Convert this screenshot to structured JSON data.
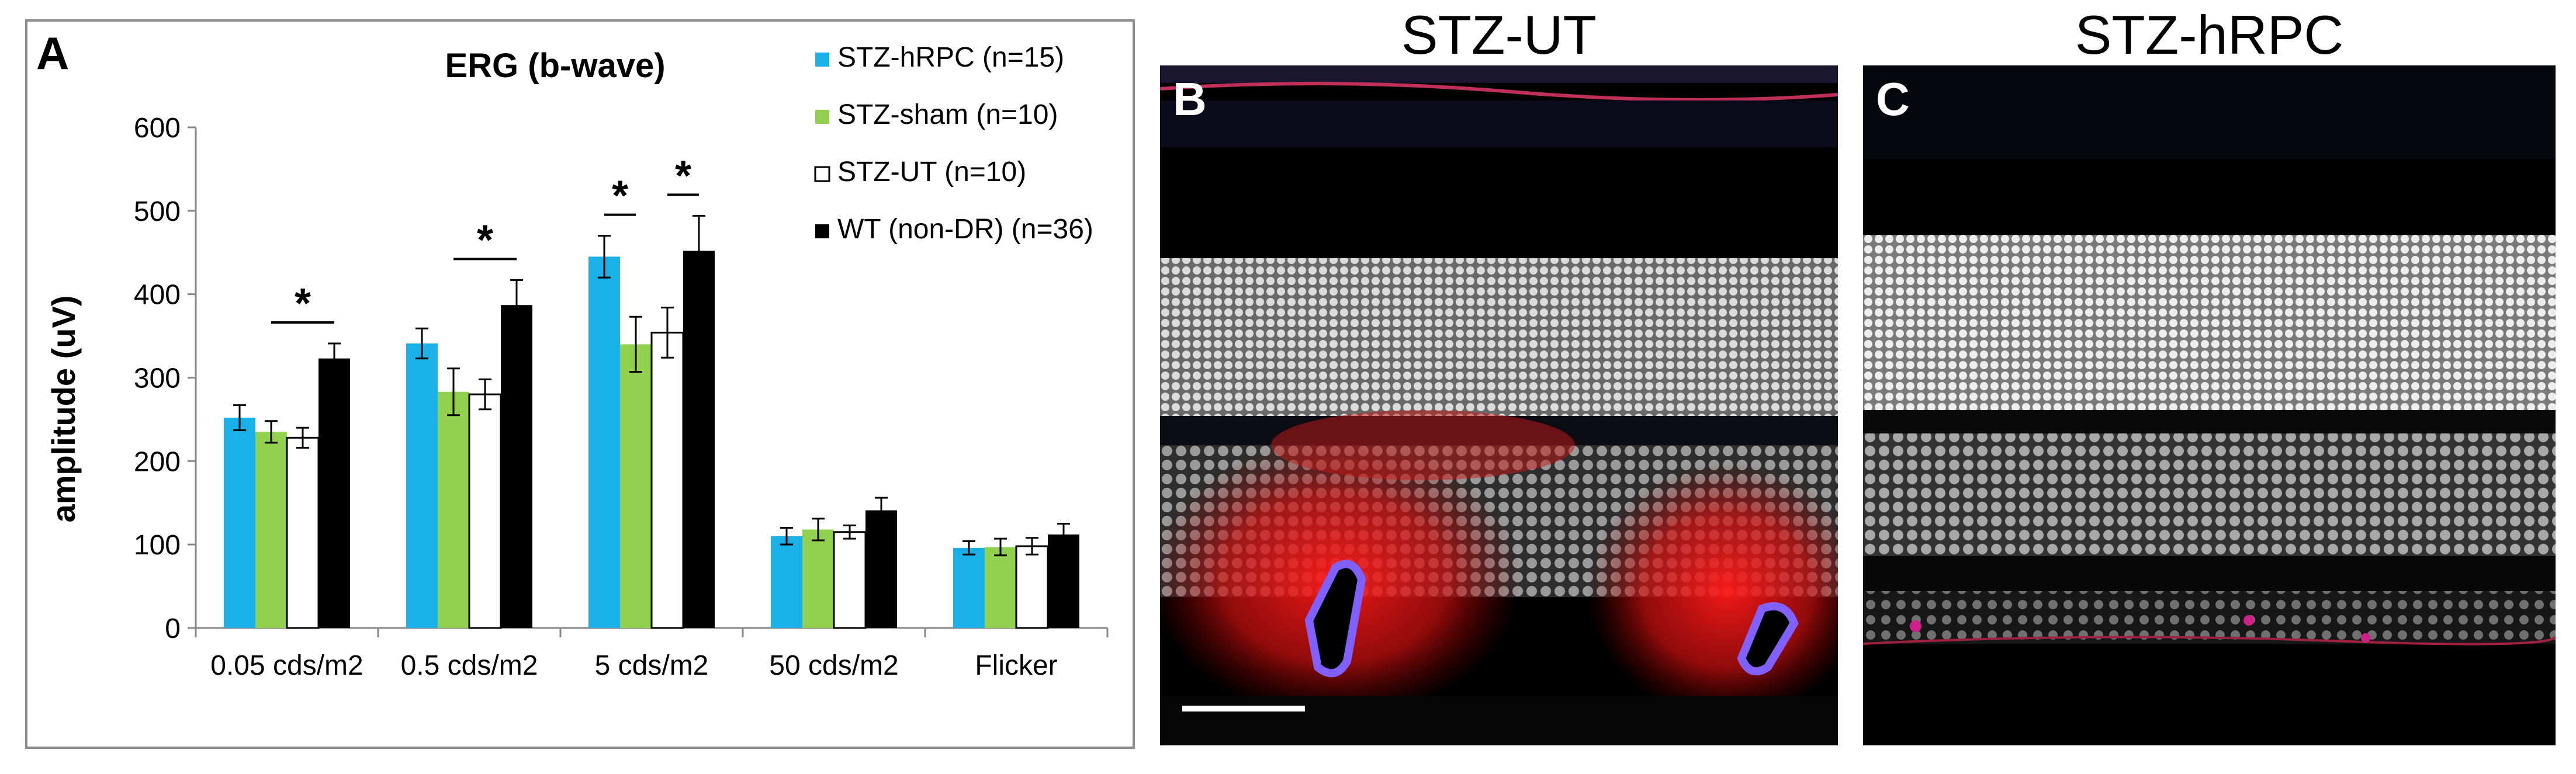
{
  "panels": {
    "a_label": "A",
    "b_label": "B",
    "c_label": "C",
    "b_title": "STZ-UT",
    "c_title": "STZ-hRPC"
  },
  "chart_data": {
    "type": "bar",
    "title": "ERG (b-wave)",
    "xlabel": "",
    "ylabel": "amplitude (uV)",
    "ylim": [
      0,
      600
    ],
    "yticks": [
      0,
      100,
      200,
      300,
      400,
      500,
      600
    ],
    "categories": [
      "0.05 cds/m2",
      "0.5 cds/m2",
      "5 cds/m2",
      "50 cds/m2",
      "Flicker"
    ],
    "legend_position": "top-right",
    "grid": false,
    "series": [
      {
        "name": "STZ-hRPC (n=15)",
        "color": "#1ab0e8",
        "values": [
          252,
          341,
          445,
          110,
          96
        ],
        "errors": [
          15,
          18,
          25,
          10,
          8
        ]
      },
      {
        "name": "STZ-sham (n=10)",
        "color": "#92d050",
        "values": [
          235,
          283,
          340,
          118,
          97
        ],
        "errors": [
          13,
          28,
          33,
          13,
          10
        ]
      },
      {
        "name": "STZ-UT (n=10)",
        "color": "#ffffff",
        "values": [
          228,
          280,
          354,
          115,
          98
        ],
        "errors": [
          12,
          18,
          30,
          8,
          10
        ]
      },
      {
        "name": "WT (non-DR) (n=36)",
        "color": "#000000",
        "values": [
          323,
          387,
          452,
          141,
          112
        ],
        "errors": [
          18,
          30,
          42,
          15,
          13
        ]
      }
    ],
    "significance": [
      {
        "label": "*",
        "category": 0,
        "from_series": 1,
        "to_series": 3
      },
      {
        "label": "*",
        "category": 1,
        "from_series": 1,
        "to_series": 3
      },
      {
        "label": "*",
        "category": 2,
        "from_series": 0,
        "to_series": 1
      },
      {
        "label": "*",
        "category": 2,
        "from_series": 2,
        "to_series": 3
      }
    ]
  }
}
